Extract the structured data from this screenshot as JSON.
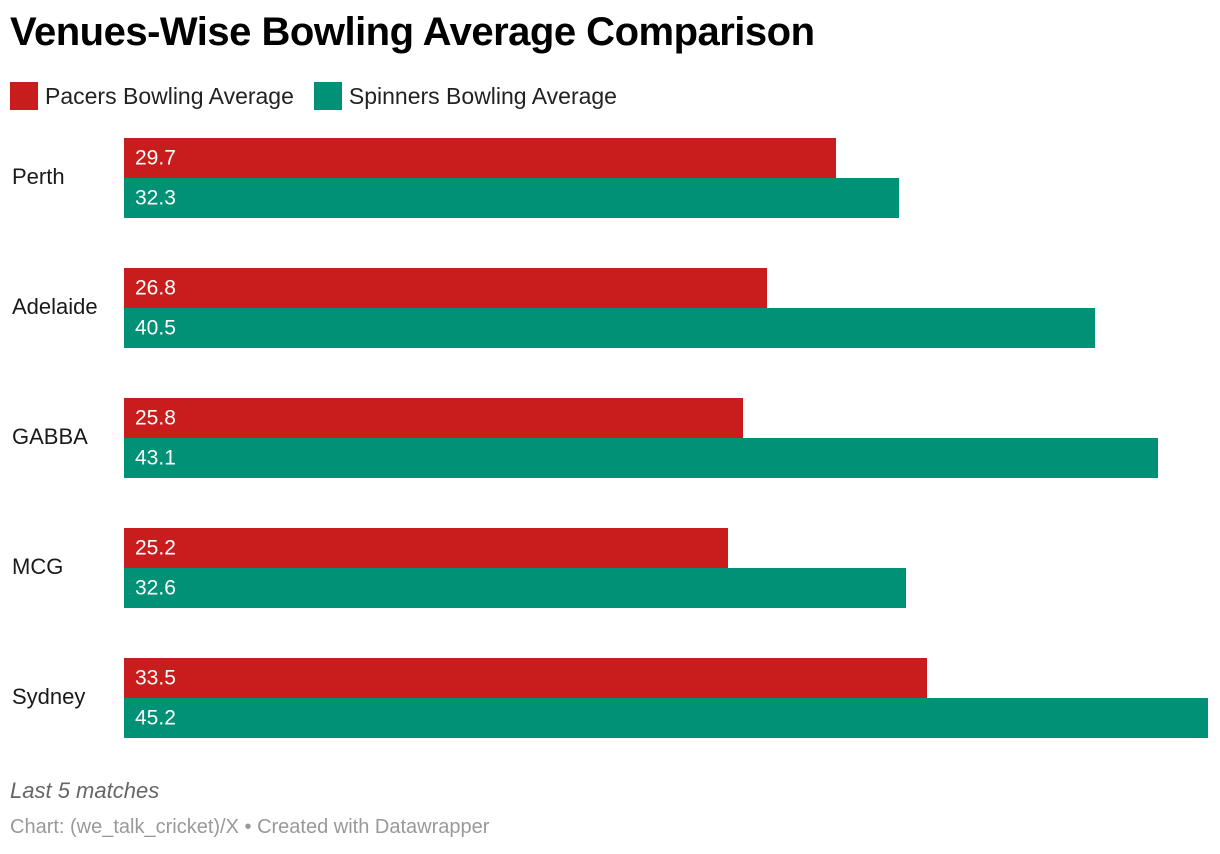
{
  "title": "Venues-Wise Bowling Average Comparison",
  "legend": [
    {
      "name": "Pacers Bowling Average",
      "color": "#c91d1d"
    },
    {
      "name": "Spinners Bowling Average",
      "color": "#009177"
    }
  ],
  "notes": "Last 5 matches",
  "source": "Chart: (we_talk_cricket)/X • Created with Datawrapper",
  "chart_data": {
    "type": "bar",
    "orientation": "horizontal",
    "title": "Venues-Wise Bowling Average Comparison",
    "categories": [
      "Perth",
      "Adelaide",
      "GABBA",
      "MCG",
      "Sydney"
    ],
    "series": [
      {
        "name": "Pacers Bowling Average",
        "color": "#c91d1d",
        "values": [
          29.7,
          26.8,
          25.8,
          25.2,
          33.5
        ]
      },
      {
        "name": "Spinners Bowling Average",
        "color": "#009177",
        "values": [
          32.3,
          40.5,
          43.1,
          32.6,
          45.2
        ]
      }
    ],
    "xlim": [
      0,
      45.2
    ],
    "grid": false,
    "legend_position": "top-left",
    "data_labels": "inside-left"
  }
}
